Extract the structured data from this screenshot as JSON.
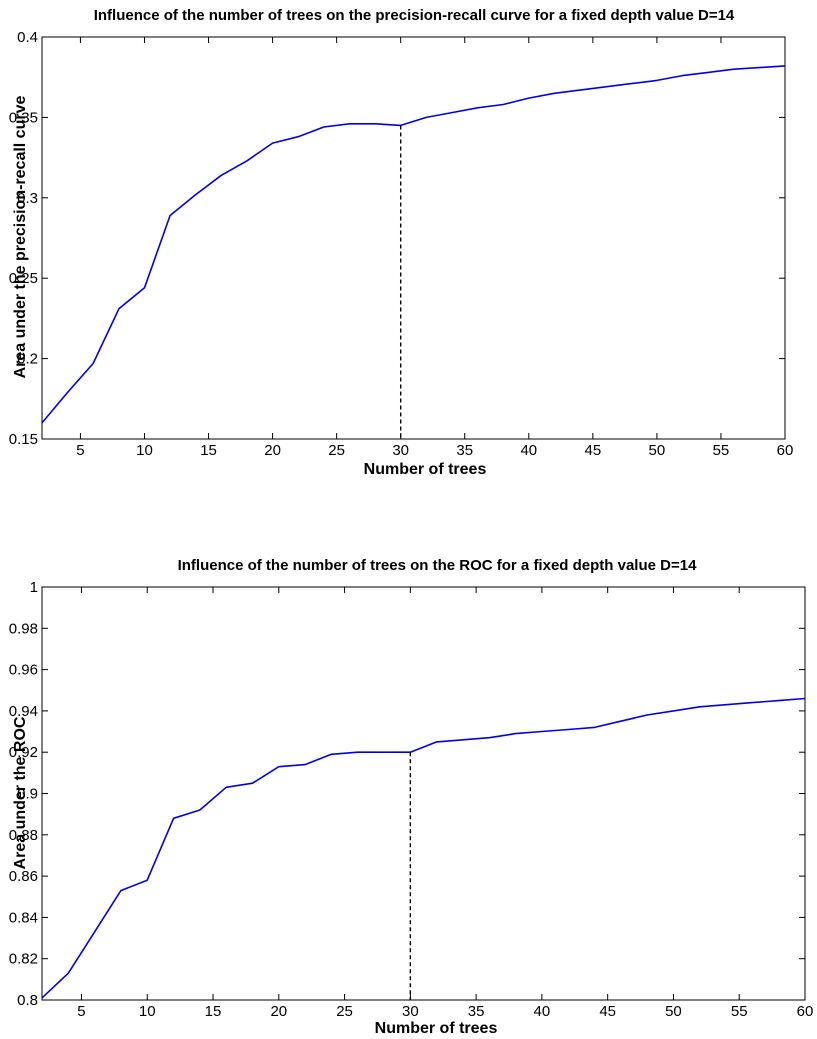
{
  "chart_data": [
    {
      "type": "line",
      "title": "Influence of the number of trees on the precision-recall curve for a fixed depth value D=14",
      "xlabel": "Number of trees",
      "ylabel": "Area under the precision-recall curve",
      "xlim": [
        2,
        60
      ],
      "ylim": [
        0.15,
        0.4
      ],
      "xticks": [
        5,
        10,
        15,
        20,
        25,
        30,
        35,
        40,
        45,
        50,
        55,
        60
      ],
      "yticks": [
        "0.15",
        "0.2",
        "0.25",
        "0.3",
        "0.35",
        "0.4"
      ],
      "grid": false,
      "legend": "none",
      "line_color": "#0000ee",
      "marker_color": "#000000",
      "marker_x": 30,
      "series": [
        {
          "x": [
            2,
            4,
            6,
            8,
            10,
            12,
            14,
            16,
            18,
            20,
            22,
            24,
            26,
            28,
            30,
            32,
            34,
            36,
            38,
            40,
            42,
            44,
            46,
            48,
            50,
            52,
            54,
            56,
            58,
            60
          ],
          "values": [
            0.16,
            0.179,
            0.197,
            0.231,
            0.244,
            0.289,
            0.302,
            0.314,
            0.323,
            0.334,
            0.338,
            0.344,
            0.346,
            0.346,
            0.345,
            0.35,
            0.353,
            0.356,
            0.358,
            0.362,
            0.365,
            0.367,
            0.369,
            0.371,
            0.373,
            0.376,
            0.378,
            0.38,
            0.381,
            0.382
          ]
        }
      ]
    },
    {
      "type": "line",
      "title": "Influence of the number of trees on the ROC for a fixed depth value D=14",
      "xlabel": "Number of trees",
      "ylabel": "Area under the ROC",
      "xlim": [
        2,
        60
      ],
      "ylim": [
        0.8,
        1.0
      ],
      "xticks": [
        5,
        10,
        15,
        20,
        25,
        30,
        35,
        40,
        45,
        50,
        55,
        60
      ],
      "yticks": [
        "0.8",
        "0.82",
        "0.84",
        "0.86",
        "0.88",
        "0.9",
        "0.92",
        "0.94",
        "0.96",
        "0.98",
        "1"
      ],
      "grid": false,
      "legend": "none",
      "line_color": "#0000ee",
      "marker_color": "#000000",
      "marker_x": 30,
      "series": [
        {
          "x": [
            2,
            4,
            6,
            8,
            10,
            12,
            14,
            16,
            18,
            20,
            22,
            24,
            26,
            28,
            30,
            32,
            34,
            36,
            38,
            40,
            42,
            44,
            46,
            48,
            50,
            52,
            54,
            56,
            58,
            60
          ],
          "values": [
            0.801,
            0.813,
            0.833,
            0.853,
            0.858,
            0.888,
            0.892,
            0.903,
            0.905,
            0.913,
            0.914,
            0.919,
            0.92,
            0.92,
            0.92,
            0.925,
            0.926,
            0.927,
            0.929,
            0.93,
            0.931,
            0.932,
            0.935,
            0.938,
            0.94,
            0.942,
            0.943,
            0.944,
            0.945,
            0.946
          ]
        }
      ]
    }
  ]
}
